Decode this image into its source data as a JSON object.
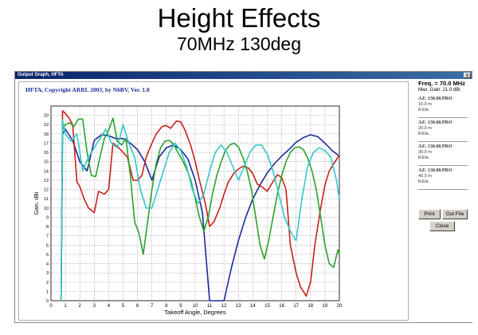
{
  "slide": {
    "title": "Height Effects",
    "subtitle": "70MHz 130deg"
  },
  "window": {
    "title": "Output Graph, HFTA",
    "close_label": "x"
  },
  "graph": {
    "header": "HFTA, Copyright ARRL 2003, by N6BV, Ver. 1.0"
  },
  "panel": {
    "freq": "Freq. = 70.0 MHz",
    "max_gain": "Max. Gain: 21.0 dBi",
    "entries": [
      {
        "name": "AZ: 130.00.PRO",
        "height": "10.0 m",
        "elements": "8-Ele.",
        "color": "#1c2a9c"
      },
      {
        "name": "AZ: 130.00.PRO",
        "height": "20.0 m",
        "elements": "8-Ele.",
        "color": "#c8201a"
      },
      {
        "name": "AZ: 130.00.PRO",
        "height": "30.0 m",
        "elements": "8-Ele.",
        "color": "#2ca02c"
      },
      {
        "name": "AZ: 130.00.PRO",
        "height": "40.0 m",
        "elements": "8-Ele.",
        "color": "#33c8c8"
      }
    ],
    "buttons": {
      "print": "Print",
      "out_file": "Out File",
      "close": "Close"
    }
  },
  "chart_data": {
    "type": "line",
    "xlabel": "Takeoff Angle, Degrees",
    "ylabel": "Gain, dBi",
    "xlim": [
      0,
      20
    ],
    "ylim": [
      0,
      21
    ],
    "xticks": [
      0,
      1,
      2,
      3,
      4,
      5,
      6,
      7,
      8,
      9,
      10,
      11,
      12,
      13,
      14,
      15,
      16,
      17,
      18,
      19,
      20
    ],
    "yticks": [
      0,
      1,
      2,
      3,
      4,
      5,
      6,
      7,
      8,
      9,
      10,
      11,
      12,
      13,
      14,
      15,
      16,
      17,
      18,
      19,
      20
    ],
    "grid": true,
    "series": [
      {
        "name": "10.0 m",
        "color": "#1c2a9c",
        "x": [
          0.7,
          0.8,
          1.0,
          1.5,
          2.0,
          2.5,
          3.0,
          3.5,
          4.0,
          4.5,
          5.0,
          5.5,
          6.0,
          6.5,
          7.0,
          7.5,
          8.0,
          8.5,
          9.0,
          9.5,
          10.0,
          10.5,
          11.0,
          11.5,
          12.0,
          12.5,
          13.0,
          13.5,
          14.0,
          14.5,
          15.0,
          15.5,
          16.0,
          16.5,
          17.0,
          17.5,
          18.0,
          18.5,
          19.0,
          19.5,
          20.0
        ],
        "y": [
          0,
          18.0,
          18.5,
          17.3,
          15.0,
          14.0,
          17.3,
          17.9,
          17.8,
          17.5,
          17.5,
          17.0,
          16.3,
          15.0,
          13.0,
          15.5,
          16.5,
          16.8,
          16.3,
          15.3,
          13.0,
          9.5,
          0.0,
          0.0,
          0.0,
          3.5,
          6.5,
          9.0,
          11.0,
          12.5,
          13.8,
          14.8,
          15.6,
          16.3,
          17.1,
          17.6,
          17.9,
          17.7,
          17.0,
          16.2,
          15.6
        ]
      },
      {
        "name": "20.0 m",
        "color": "#c8201a",
        "x": [
          0.7,
          0.8,
          1.0,
          1.3,
          1.5,
          1.8,
          2.0,
          2.3,
          2.6,
          3.0,
          3.3,
          3.7,
          4.0,
          4.3,
          4.7,
          5.0,
          5.3,
          5.7,
          6.0,
          6.3,
          6.6,
          7.0,
          7.3,
          7.7,
          8.0,
          8.3,
          8.7,
          9.0,
          9.3,
          9.7,
          10.0,
          10.3,
          10.7,
          11.0,
          11.3,
          11.7,
          12.0,
          12.3,
          12.7,
          13.0,
          13.3,
          13.7,
          14.0,
          14.3,
          14.7,
          15.0,
          15.3,
          15.7,
          16.0,
          16.3,
          16.6,
          17.0,
          17.3,
          17.7,
          18.0,
          18.3,
          18.7,
          19.0,
          19.3,
          19.7,
          20.0
        ],
        "y": [
          0,
          20.5,
          20.2,
          19.6,
          19.0,
          12.8,
          12.3,
          11.0,
          10.0,
          9.5,
          11.8,
          11.5,
          12.0,
          17.0,
          16.5,
          16.0,
          15.5,
          13.0,
          13.0,
          13.5,
          15.5,
          17.0,
          18.0,
          18.8,
          18.9,
          18.6,
          19.4,
          19.3,
          18.4,
          16.7,
          15.0,
          13.0,
          10.5,
          8.0,
          8.5,
          10.0,
          11.5,
          12.8,
          13.8,
          14.2,
          14.5,
          14.3,
          13.7,
          12.6,
          12.2,
          11.8,
          12.6,
          13.6,
          13.3,
          12.0,
          6.0,
          3.0,
          1.5,
          0.5,
          2.0,
          6.0,
          10.0,
          12.5,
          14.0,
          15.0,
          15.7
        ]
      },
      {
        "name": "30.0 m",
        "color": "#2ca02c",
        "x": [
          0.7,
          0.8,
          1.0,
          1.3,
          1.6,
          1.9,
          2.2,
          2.5,
          2.8,
          3.1,
          3.4,
          3.7,
          4.0,
          4.3,
          4.6,
          4.9,
          5.2,
          5.5,
          5.8,
          6.1,
          6.4,
          6.7,
          7.0,
          7.3,
          7.6,
          7.9,
          8.2,
          8.5,
          8.8,
          9.1,
          9.4,
          9.7,
          10.0,
          10.3,
          10.6,
          10.9,
          11.2,
          11.5,
          11.8,
          12.1,
          12.4,
          12.7,
          13.0,
          13.3,
          13.6,
          13.9,
          14.2,
          14.5,
          14.8,
          15.1,
          15.4,
          15.7,
          16.0,
          16.3,
          16.6,
          16.9,
          17.2,
          17.5,
          17.8,
          18.1,
          18.4,
          18.7,
          19.0,
          19.3,
          19.6,
          19.9,
          20.0
        ],
        "y": [
          0,
          18.5,
          19.0,
          19.2,
          18.8,
          19.6,
          19.6,
          16.0,
          13.5,
          13.4,
          15.5,
          17.5,
          18.4,
          19.7,
          17.2,
          16.8,
          17.5,
          13.5,
          8.5,
          7.3,
          5.0,
          8.5,
          12.0,
          14.8,
          16.5,
          17.2,
          17.3,
          16.9,
          16.0,
          15.2,
          14.2,
          13.0,
          11.0,
          9.0,
          7.5,
          9.0,
          11.5,
          13.5,
          15.0,
          16.2,
          16.8,
          17.0,
          16.6,
          15.5,
          14.0,
          12.0,
          9.0,
          6.0,
          4.5,
          6.5,
          9.0,
          11.5,
          13.5,
          15.0,
          16.0,
          16.5,
          16.6,
          16.3,
          15.4,
          14.0,
          12.0,
          9.0,
          6.0,
          4.0,
          3.6,
          5.5,
          5.0
        ]
      },
      {
        "name": "40.0 m",
        "color": "#33c8c8",
        "x": [
          0.7,
          0.8,
          1.0,
          1.4,
          1.8,
          2.2,
          2.6,
          3.0,
          3.4,
          3.8,
          4.2,
          4.6,
          5.0,
          5.4,
          5.8,
          6.2,
          6.6,
          7.0,
          7.4,
          7.8,
          8.2,
          8.6,
          9.0,
          9.4,
          9.8,
          10.2,
          10.6,
          11.0,
          11.4,
          11.8,
          12.2,
          12.6,
          13.0,
          13.4,
          13.8,
          14.2,
          14.6,
          15.0,
          15.4,
          15.8,
          16.2,
          16.6,
          17.0,
          17.4,
          17.8,
          18.2,
          18.6,
          19.0,
          19.4,
          19.8,
          20.0
        ],
        "y": [
          0,
          19.5,
          18.0,
          17.2,
          18.0,
          14.0,
          15.5,
          16.5,
          17.5,
          18.5,
          17.0,
          16.5,
          19.0,
          17.0,
          15.5,
          12.0,
          10.0,
          10.0,
          12.0,
          14.0,
          16.0,
          17.0,
          16.2,
          14.5,
          12.0,
          10.5,
          11.5,
          14.0,
          16.0,
          16.8,
          16.0,
          14.5,
          13.0,
          14.5,
          16.0,
          16.8,
          16.8,
          15.8,
          14.0,
          11.5,
          9.0,
          7.5,
          6.5,
          11.0,
          14.5,
          16.0,
          16.5,
          16.2,
          15.5,
          13.0,
          11.0
        ]
      }
    ]
  }
}
